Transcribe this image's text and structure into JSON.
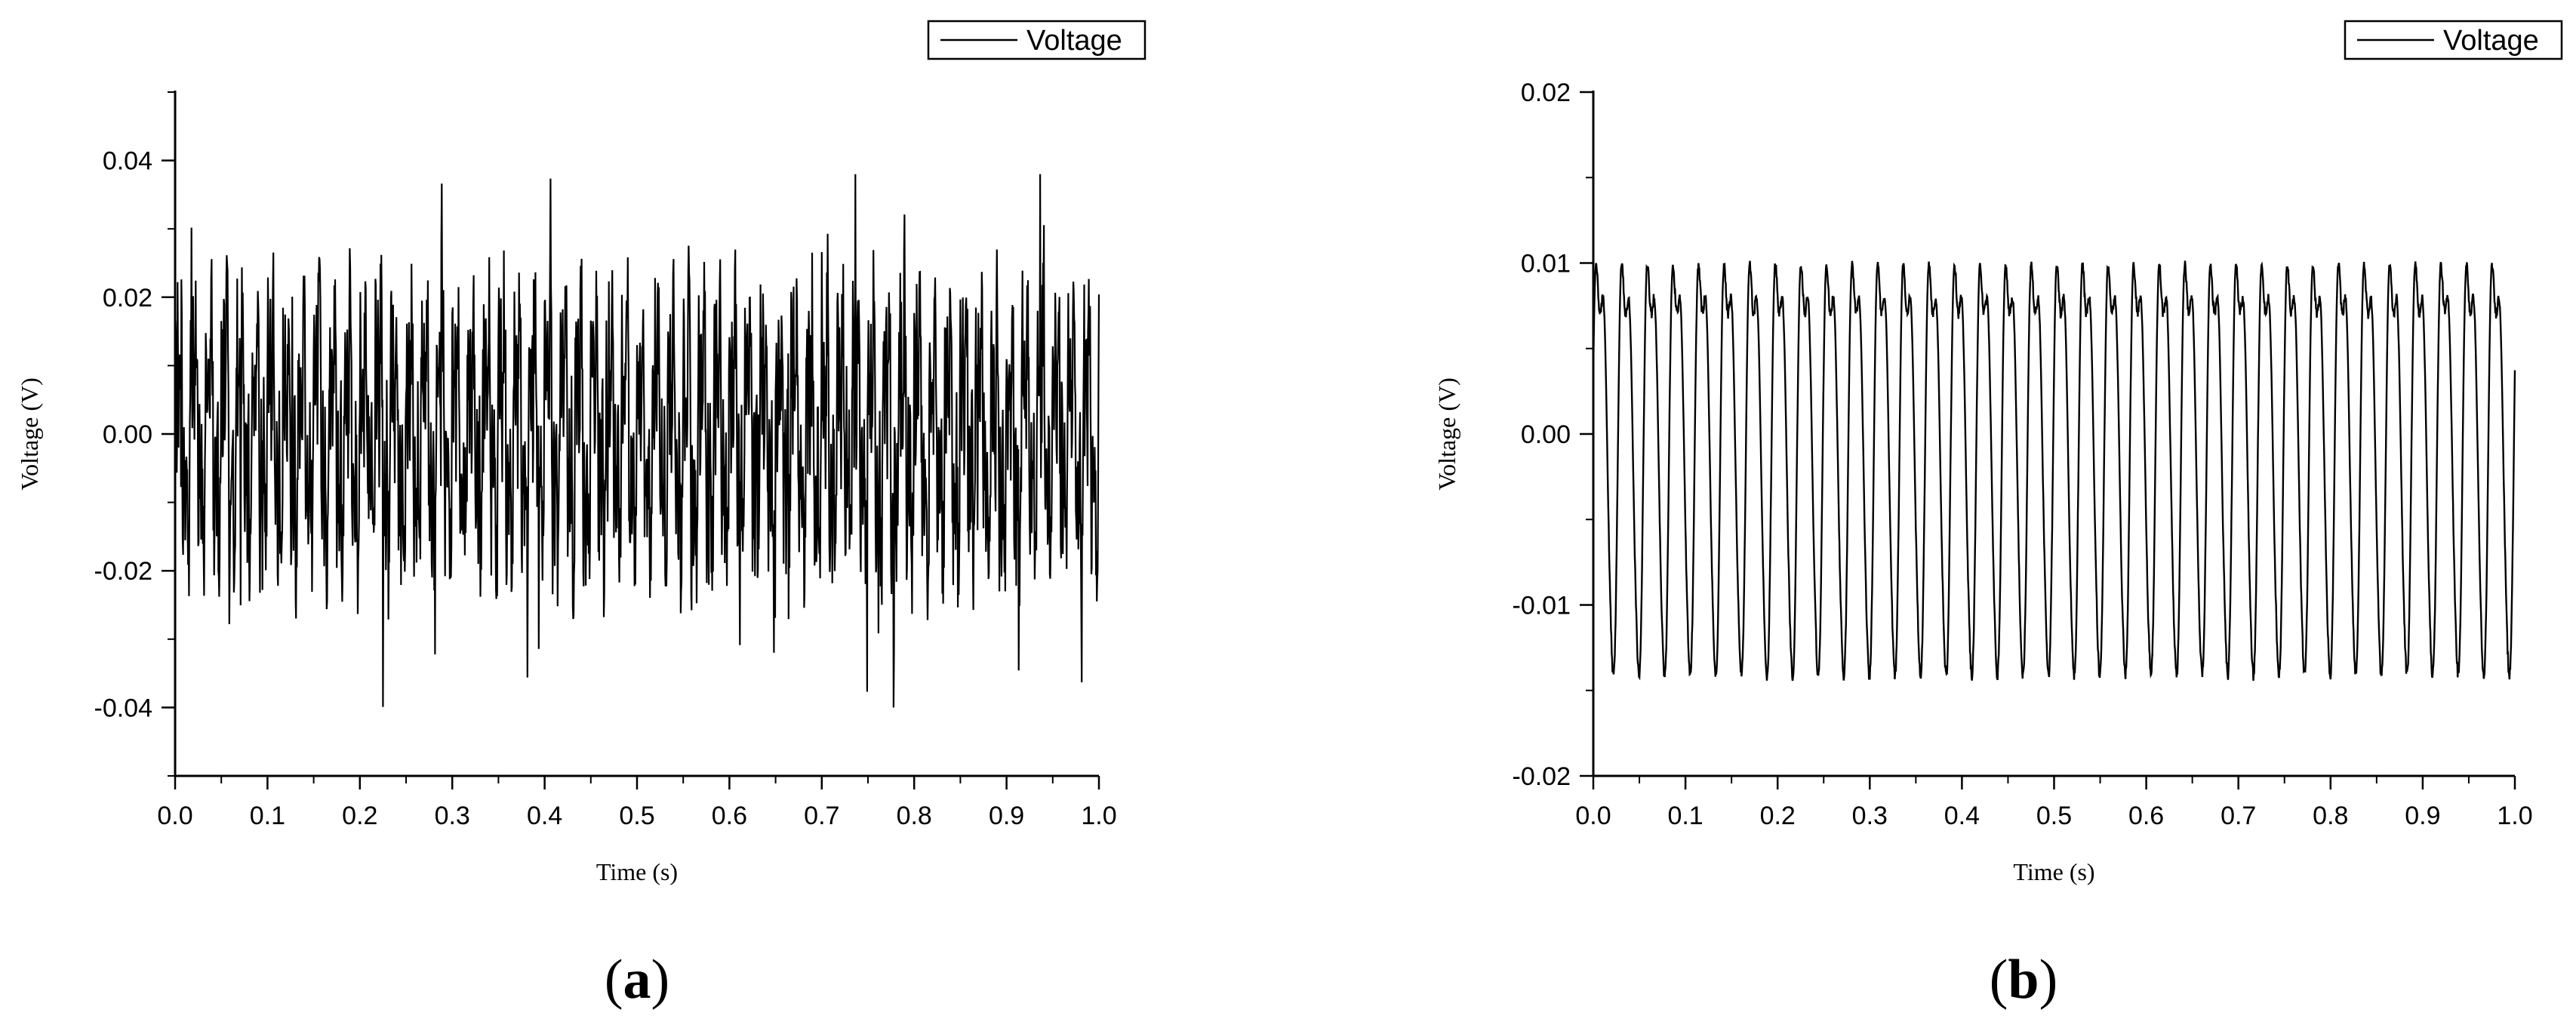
{
  "chart_data": [
    {
      "id": "a",
      "type": "line",
      "caption_open": "(",
      "caption_letter": "a",
      "caption_close": ")",
      "xlabel": "Time (s)",
      "ylabel": "Voltage (V)",
      "xlim": [
        0,
        1.0
      ],
      "ylim": [
        -0.05,
        0.05
      ],
      "xticks": [
        "0.0",
        "0.1",
        "0.2",
        "0.3",
        "0.4",
        "0.5",
        "0.6",
        "0.7",
        "0.8",
        "0.9",
        "1.0"
      ],
      "yticks": [
        "-0.04",
        "-0.02",
        "0.00",
        "0.02",
        "0.04"
      ],
      "ytick_values": [
        -0.04,
        -0.02,
        0.0,
        0.02,
        0.04
      ],
      "legend_position": "top-right",
      "series": [
        {
          "name": "Voltage",
          "color": "#000000",
          "amplitude": 0.03,
          "fundamental_hz": 60,
          "min": -0.04,
          "max": 0.038
        }
      ]
    },
    {
      "id": "b",
      "type": "line",
      "caption_open": "(",
      "caption_letter": "b",
      "caption_close": ")",
      "xlabel": "Time (s)",
      "ylabel": "Voltage (V)",
      "xlim": [
        0,
        1.0
      ],
      "ylim": [
        -0.02,
        0.02
      ],
      "xticks": [
        "0.0",
        "0.1",
        "0.2",
        "0.3",
        "0.4",
        "0.5",
        "0.6",
        "0.7",
        "0.8",
        "0.9",
        "1.0"
      ],
      "yticks": [
        "-0.02",
        "-0.01",
        "0.00",
        "0.01",
        "0.02"
      ],
      "ytick_values": [
        -0.02,
        -0.01,
        0.0,
        0.01,
        0.02
      ],
      "legend_position": "top-right",
      "series": [
        {
          "name": "Voltage",
          "color": "#000000",
          "cycles": 36,
          "peak": 0.012,
          "trough": -0.014,
          "min": -0.016,
          "max": 0.0145
        }
      ]
    }
  ]
}
